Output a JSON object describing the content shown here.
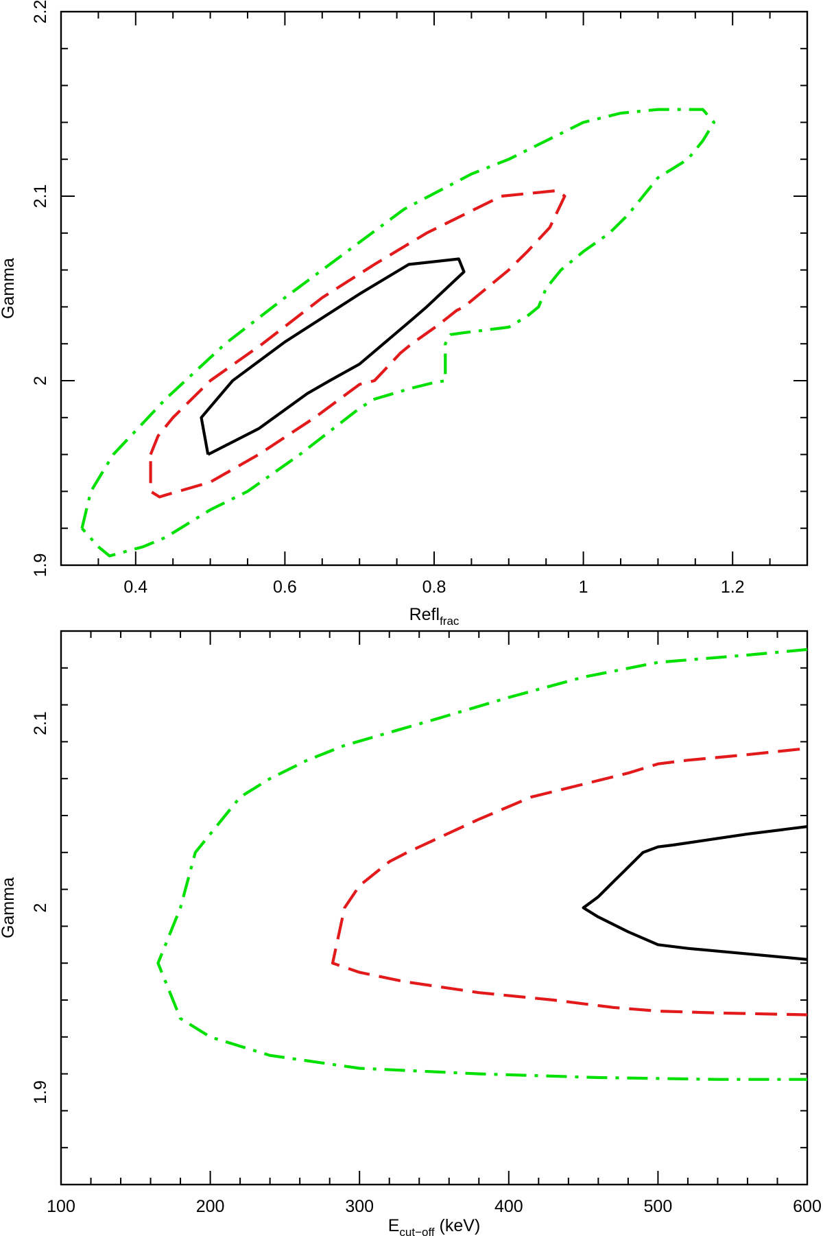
{
  "chart_data": [
    {
      "type": "line",
      "title": "",
      "xlabel": "Refl",
      "xlabel_sub": "frac",
      "ylabel": "Gamma",
      "xlim": [
        0.3,
        1.3
      ],
      "ylim": [
        1.9,
        2.2
      ],
      "x_ticks": [
        0.4,
        0.6,
        0.8,
        1,
        1.2
      ],
      "x_tick_labels": [
        "0.4",
        "0.6",
        "0.8",
        "1",
        "1.2"
      ],
      "x_minor_step": 0.05,
      "y_ticks": [
        1.9,
        2,
        2.1,
        2.2
      ],
      "y_tick_labels": [
        "1.9",
        "2",
        "2.1",
        "2.2"
      ],
      "y_minor_step": 0.02,
      "series": [
        {
          "color": "#000000",
          "style": "solid",
          "x": [
            0.497,
            0.488,
            0.53,
            0.6,
            0.7,
            0.766,
            0.833,
            0.84,
            0.79,
            0.77,
            0.7,
            0.66,
            0.63,
            0.565,
            0.497
          ],
          "y": [
            1.96,
            1.98,
            2.0,
            2.021,
            2.047,
            2.063,
            2.066,
            2.059,
            2.04,
            2.033,
            2.009,
            2.0,
            1.993,
            1.974,
            1.96
          ]
        },
        {
          "color": "#e31a1c",
          "style": "dashed",
          "x": [
            0.42,
            0.43,
            0.45,
            0.5,
            0.57,
            0.65,
            0.72,
            0.79,
            0.89,
            0.965,
            0.975,
            0.955,
            0.925,
            0.9,
            0.87,
            0.84,
            0.83,
            0.805,
            0.77,
            0.755,
            0.72,
            0.7,
            0.64,
            0.565,
            0.5,
            0.44,
            0.432,
            0.42,
            0.42
          ],
          "y": [
            1.96,
            1.97,
            1.98,
            2.0,
            2.02,
            2.045,
            2.063,
            2.08,
            2.1,
            2.103,
            2.1,
            2.083,
            2.07,
            2.06,
            2.05,
            2.04,
            2.038,
            2.03,
            2.02,
            2.015,
            2.0,
            1.998,
            1.98,
            1.96,
            1.945,
            1.938,
            1.937,
            1.94,
            1.96
          ]
        },
        {
          "color": "#00e000",
          "style": "dashdot",
          "x": [
            0.328,
            0.34,
            0.37,
            0.44,
            0.52,
            0.6,
            0.7,
            0.76,
            0.85,
            0.9,
            0.95,
            1.0,
            1.05,
            1.1,
            1.16,
            1.175,
            1.16,
            1.14,
            1.1,
            1.06,
            1.035,
            1.0,
            0.97,
            0.95,
            0.94,
            0.925,
            0.9,
            0.84,
            0.822,
            0.815,
            0.815,
            0.8,
            0.77,
            0.72,
            0.7,
            0.62,
            0.55,
            0.5,
            0.44,
            0.41,
            0.365,
            0.35,
            0.328
          ],
          "y": [
            1.92,
            1.94,
            1.96,
            1.99,
            2.02,
            2.045,
            2.075,
            2.093,
            2.112,
            2.12,
            2.13,
            2.14,
            2.145,
            2.147,
            2.147,
            2.14,
            2.13,
            2.12,
            2.11,
            2.09,
            2.08,
            2.07,
            2.06,
            2.05,
            2.04,
            2.035,
            2.029,
            2.026,
            2.025,
            2.02,
            2.0,
            1.999,
            1.996,
            1.99,
            1.985,
            1.96,
            1.94,
            1.93,
            1.915,
            1.91,
            1.905,
            1.91,
            1.92
          ]
        }
      ]
    },
    {
      "type": "line",
      "title": "",
      "xlabel": "E",
      "xlabel_sub": "cut−off",
      "xlabel_unit": " (keV)",
      "ylabel": "Gamma",
      "xlim": [
        100,
        600
      ],
      "ylim": [
        1.85,
        2.15
      ],
      "x_ticks": [
        100,
        200,
        300,
        400,
        500,
        600
      ],
      "x_tick_labels": [
        "100",
        "200",
        "300",
        "400",
        "500",
        "600"
      ],
      "x_minor_step": 20,
      "y_ticks": [
        1.9,
        2,
        2.1
      ],
      "y_tick_labels": [
        "1.9",
        "2",
        "2.1"
      ],
      "y_minor_step": 0.02,
      "series": [
        {
          "color": "#000000",
          "style": "solid",
          "x": [
            600,
            560,
            510,
            500,
            490,
            480,
            470,
            460,
            450,
            460,
            480,
            500,
            520,
            560,
            600
          ],
          "y": [
            2.044,
            2.04,
            2.034,
            2.033,
            2.03,
            2.022,
            2.014,
            2.006,
            2.0,
            1.995,
            1.987,
            1.98,
            1.978,
            1.975,
            1.972
          ]
        },
        {
          "color": "#e31a1c",
          "style": "dashed",
          "x": [
            595,
            560,
            520,
            500,
            480,
            450,
            415,
            380,
            332,
            320,
            300,
            290,
            282,
            300,
            330,
            380,
            430,
            470,
            500,
            540,
            600
          ],
          "y": [
            2.086,
            2.083,
            2.08,
            2.078,
            2.073,
            2.067,
            2.06,
            2.048,
            2.03,
            2.025,
            2.012,
            2.0,
            1.97,
            1.965,
            1.96,
            1.954,
            1.95,
            1.946,
            1.944,
            1.943,
            1.942
          ]
        },
        {
          "color": "#00e000",
          "style": "dashdot",
          "x": [
            600,
            560,
            500,
            450,
            400,
            350,
            320,
            290,
            265,
            240,
            220,
            200,
            190,
            180,
            165,
            180,
            200,
            240,
            300,
            380,
            460,
            540,
            600
          ],
          "y": [
            2.14,
            2.137,
            2.133,
            2.125,
            2.114,
            2.102,
            2.095,
            2.088,
            2.08,
            2.07,
            2.06,
            2.04,
            2.03,
            2.0,
            1.97,
            1.94,
            1.93,
            1.92,
            1.913,
            1.91,
            1.908,
            1.907,
            1.907
          ]
        }
      ]
    }
  ]
}
